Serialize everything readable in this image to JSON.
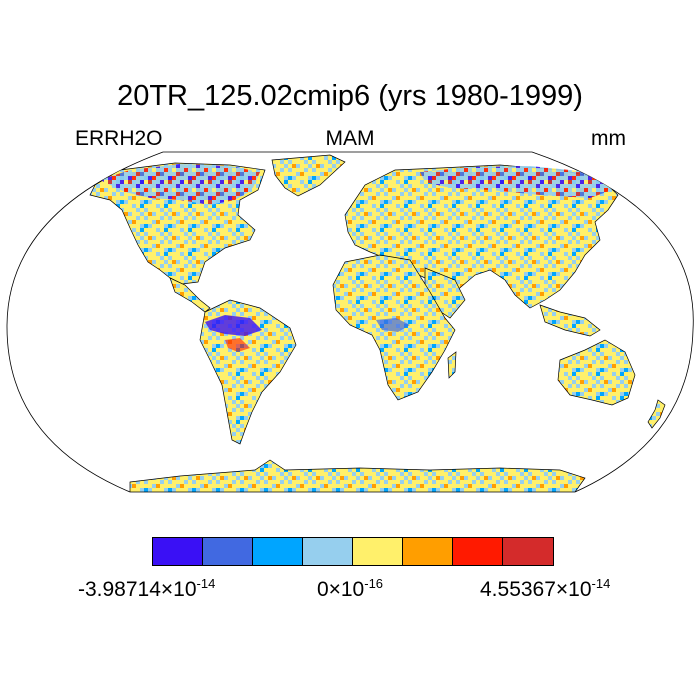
{
  "title": "20TR_125.02cmip6 (yrs 1980-1999)",
  "left_label": "ERRH2O",
  "center_label": "MAM",
  "right_label": "mm",
  "colorbar": {
    "colors": [
      "#3a10f5",
      "#4169e1",
      "#00a5ff",
      "#96cfee",
      "#fff06b",
      "#ff9e00",
      "#ff1a00",
      "#d42b2b"
    ],
    "min_label": {
      "mantissa": "-3.98714×10",
      "exponent": "-14"
    },
    "mid_label": {
      "mantissa": "0×10",
      "exponent": "-16"
    },
    "max_label": {
      "mantissa": "4.55367×10",
      "exponent": "-14"
    }
  },
  "map": {
    "projection": "Robinson",
    "variable": "ERRH2O",
    "season": "MAM",
    "units": "mm"
  }
}
